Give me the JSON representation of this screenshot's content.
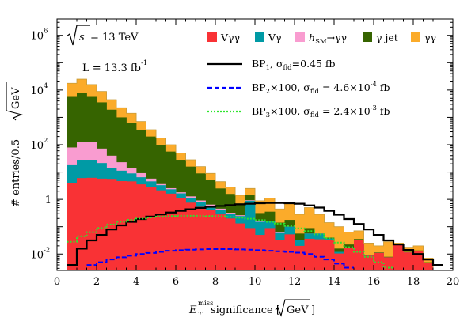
{
  "chart_data": {
    "type": "area",
    "xlabel_parts": {
      "main": "E",
      "sub": "T",
      "sup": "miss",
      "rest": " significance [",
      "unit": "GeV",
      "close": " ]"
    },
    "ylabel_parts": {
      "main": "# entries/0.5 ",
      "unit": "GeV"
    },
    "xlim": [
      0,
      20
    ],
    "ylim_log10": [
      -2.6,
      6.6
    ],
    "log_y": true,
    "x_ticks": [
      "0",
      "2",
      "4",
      "6",
      "8",
      "10",
      "12",
      "14",
      "16",
      "18",
      "20"
    ],
    "y_ticks": [
      {
        "base": "10",
        "exp": "-2"
      },
      {
        "base": "1",
        "exp": ""
      },
      {
        "base": "10",
        "exp": "2"
      },
      {
        "base": "10",
        "exp": "4"
      },
      {
        "base": "10",
        "exp": "6"
      }
    ],
    "annotations": {
      "sqrt_s": "s",
      "energy": " = 13 TeV",
      "lumi": "L = 13.3 fb",
      "lumi_sup": "-1"
    },
    "bin_width": 0.5,
    "bin_edges_start": 0.5,
    "stack_order": [
      "Vγγ",
      "Vγ",
      "hSM→γγ",
      "γ jet",
      "γγ"
    ],
    "stack_colors": {
      "Vγγ": "#f93235",
      "Vγ": "#009aa5",
      "hSM→γγ": "#f99cd0",
      "γ jet": "#366400",
      "γγ": "#fbab2a"
    },
    "stack_cumulative_log10": {
      "Vγγ": [
        0.6,
        0.78,
        0.79,
        0.76,
        0.75,
        0.67,
        0.66,
        0.55,
        0.46,
        0.33,
        0.21,
        0.06,
        -0.12,
        -0.27,
        -0.4,
        -0.55,
        -0.7,
        -0.88,
        -1.05,
        -1.3,
        -1.05,
        -1.5,
        -1.28,
        -1.7,
        -1.44,
        -1.46,
        -1.5,
        -1.98,
        -1.76,
        -1.48,
        -2.06,
        -1.96,
        -2.12,
        -1.67,
        -1.94,
        -1.89,
        -2.32
      ],
      "Vγ": [
        1.25,
        1.45,
        1.45,
        1.33,
        1.15,
        1.05,
        0.95,
        0.81,
        0.66,
        0.52,
        0.37,
        0.22,
        0.06,
        -0.09,
        -0.24,
        -0.4,
        -0.54,
        -0.61,
        -0.05,
        -0.82,
        -0.8,
        -1.23,
        -1.0,
        -1.5,
        -1.25,
        -1.25,
        -1.43,
        -1.92,
        -1.76,
        -1.48,
        -2.06,
        -1.96,
        -2.12,
        -1.67,
        -1.94,
        -1.89,
        -2.32
      ],
      "hSM→γγ": [
        1.9,
        2.1,
        2.1,
        1.86,
        1.6,
        1.36,
        1.16,
        0.96,
        0.76,
        0.56,
        0.41,
        0.26,
        0.11,
        -0.04,
        -0.19,
        -0.34,
        -0.49,
        -0.58,
        -0.03,
        -0.78,
        -0.78,
        -1.2,
        -1.0,
        -1.5,
        -1.25,
        -1.25,
        -1.43,
        -1.92,
        -1.76,
        -1.48,
        -2.06,
        -1.96,
        -2.12,
        -1.67,
        -1.94,
        -1.89,
        -2.32
      ],
      "γ jet": [
        3.75,
        3.9,
        3.75,
        3.55,
        3.28,
        3.0,
        2.8,
        2.55,
        2.3,
        2.0,
        1.75,
        1.45,
        1.2,
        0.95,
        0.7,
        0.4,
        0.2,
        -0.15,
        0.15,
        -0.5,
        -0.45,
        -0.85,
        -0.75,
        -1.25,
        -1.05,
        -1.25,
        -1.4,
        -1.8,
        -1.65,
        -1.45,
        -2.03,
        -1.94,
        -2.1,
        -1.65,
        -1.92,
        -1.87,
        -2.3
      ],
      "γγ": [
        4.25,
        4.4,
        4.2,
        3.95,
        3.65,
        3.35,
        3.15,
        2.85,
        2.55,
        2.25,
        2.0,
        1.7,
        1.45,
        1.2,
        0.95,
        0.65,
        0.45,
        0.15,
        0.4,
        -0.05,
        0.05,
        -0.35,
        -0.1,
        -0.55,
        -0.3,
        -0.55,
        -0.85,
        -1.0,
        -1.2,
        -1.15,
        -1.6,
        -1.7,
        -1.55,
        -1.6,
        -1.75,
        -1.7,
        -2.15
      ]
    },
    "bp_lines": [
      {
        "name": "BP",
        "index": "1",
        "suffix": ", σ",
        "sub": "fid",
        "value": "=0.45 fb",
        "color": "#000000",
        "style": "solid",
        "x_start": 0.5,
        "log10": [
          -2.4,
          -1.8,
          -1.5,
          -1.3,
          -1.1,
          -0.95,
          -0.82,
          -0.72,
          -0.63,
          -0.55,
          -0.48,
          -0.42,
          -0.36,
          -0.31,
          -0.27,
          -0.24,
          -0.21,
          -0.18,
          -0.16,
          -0.14,
          -0.13,
          -0.13,
          -0.14,
          -0.16,
          -0.22,
          -0.3,
          -0.42,
          -0.56,
          -0.72,
          -0.9,
          -1.1,
          -1.3,
          -1.5,
          -1.65,
          -1.85,
          -2.0,
          -2.2,
          -2.4
        ]
      },
      {
        "name": "BP",
        "index": "2",
        "suffix": "×100, σ",
        "sub": "fid",
        "value": " = 4.6×10",
        "exp": "-4",
        "unit": " fb",
        "color": "#0000ff",
        "style": "dashed",
        "x_start": 1.5,
        "log10": [
          -2.4,
          -2.3,
          -2.2,
          -2.12,
          -2.06,
          -2.0,
          -1.96,
          -1.92,
          -1.88,
          -1.86,
          -1.84,
          -1.83,
          -1.82,
          -1.82,
          -1.82,
          -1.83,
          -1.84,
          -1.86,
          -1.88,
          -1.9,
          -1.92,
          -1.95,
          -2.0,
          -2.1,
          -2.2,
          -2.35,
          -2.5
        ]
      },
      {
        "name": "BP",
        "index": "3",
        "suffix": "×100, σ",
        "sub": "fid",
        "value": " = 2.4×10",
        "exp": "-3",
        "unit": " fb",
        "color": "#2ee52e",
        "style": "dotted",
        "x_start": 0.5,
        "log10": [
          -1.55,
          -1.35,
          -1.2,
          -1.05,
          -0.92,
          -0.82,
          -0.75,
          -0.7,
          -0.66,
          -0.63,
          -0.61,
          -0.6,
          -0.6,
          -0.6,
          -0.61,
          -0.62,
          -0.64,
          -0.67,
          -0.71,
          -0.76,
          -0.82,
          -0.89,
          -0.97,
          -1.06,
          -1.16,
          -1.28,
          -1.42,
          -1.58,
          -1.75,
          -1.92,
          -2.1,
          -2.3,
          -2.5
        ]
      }
    ],
    "legend_placement": "top-right"
  }
}
